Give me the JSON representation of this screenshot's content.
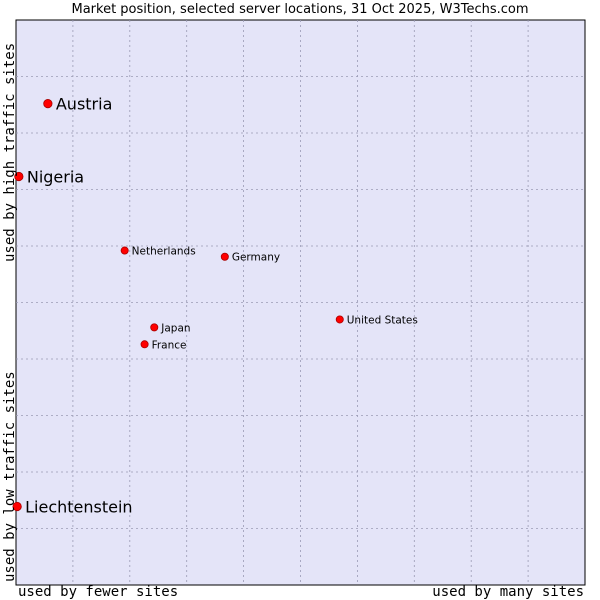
{
  "chart_data": {
    "type": "scatter",
    "title": "Market position, selected server locations, 31 Oct 2025, W3Techs.com",
    "xlabel_left": "used by fewer sites",
    "xlabel_right": "used by many sites",
    "ylabel_bottom": "used by low traffic sites",
    "ylabel_top": "used by high traffic sites",
    "xlim": [
      0,
      100
    ],
    "ylim": [
      0,
      100
    ],
    "grid": true,
    "accent_color": "#ff0000",
    "plot_background": "#e4e4f8",
    "points": [
      {
        "label": "Austria",
        "x": 5.6,
        "y": 85.2,
        "size": "large"
      },
      {
        "label": "Nigeria",
        "x": 0.5,
        "y": 72.3,
        "size": "large"
      },
      {
        "label": "Netherlands",
        "x": 19.1,
        "y": 59.2,
        "size": "small"
      },
      {
        "label": "Germany",
        "x": 36.7,
        "y": 58.1,
        "size": "small"
      },
      {
        "label": "United States",
        "x": 56.9,
        "y": 47.0,
        "size": "small"
      },
      {
        "label": "Japan",
        "x": 24.3,
        "y": 45.6,
        "size": "small"
      },
      {
        "label": "France",
        "x": 22.6,
        "y": 42.6,
        "size": "small"
      },
      {
        "label": "Liechtenstein",
        "x": 0.2,
        "y": 13.9,
        "size": "large"
      }
    ]
  }
}
